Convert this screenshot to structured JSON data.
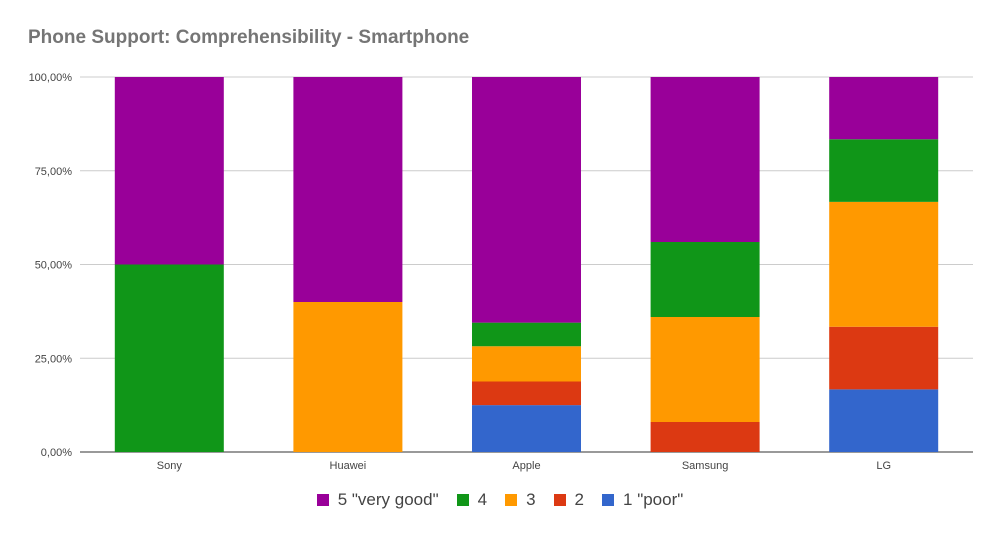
{
  "chart_data": {
    "type": "bar",
    "stacked": true,
    "title": "Phone Support: Comprehensibility - Smartphone",
    "xlabel": "",
    "ylabel": "",
    "ylim": [
      0,
      100
    ],
    "yticks": [
      "0,00%",
      "25,00%",
      "50,00%",
      "75,00%",
      "100,00%"
    ],
    "categories": [
      "Sony",
      "Huawei",
      "Apple",
      "Samsung",
      "LG"
    ],
    "series": [
      {
        "name": "1 \"poor\"",
        "color": "#3366cc",
        "values": [
          0,
          0,
          12.5,
          0,
          16.7
        ]
      },
      {
        "name": "2",
        "color": "#dc3912",
        "values": [
          0,
          0,
          6.3,
          8.0,
          16.7
        ]
      },
      {
        "name": "3",
        "color": "#ff9900",
        "values": [
          0,
          40,
          9.4,
          28.0,
          33.3
        ]
      },
      {
        "name": "4",
        "color": "#109618",
        "values": [
          50,
          0,
          6.3,
          20.0,
          16.7
        ]
      },
      {
        "name": "5 \"very good\"",
        "color": "#990099",
        "values": [
          50,
          60,
          65.5,
          44.0,
          16.6
        ]
      }
    ],
    "legend_order": [
      4,
      3,
      2,
      1,
      0
    ],
    "legend_position": "bottom",
    "grid": true
  }
}
